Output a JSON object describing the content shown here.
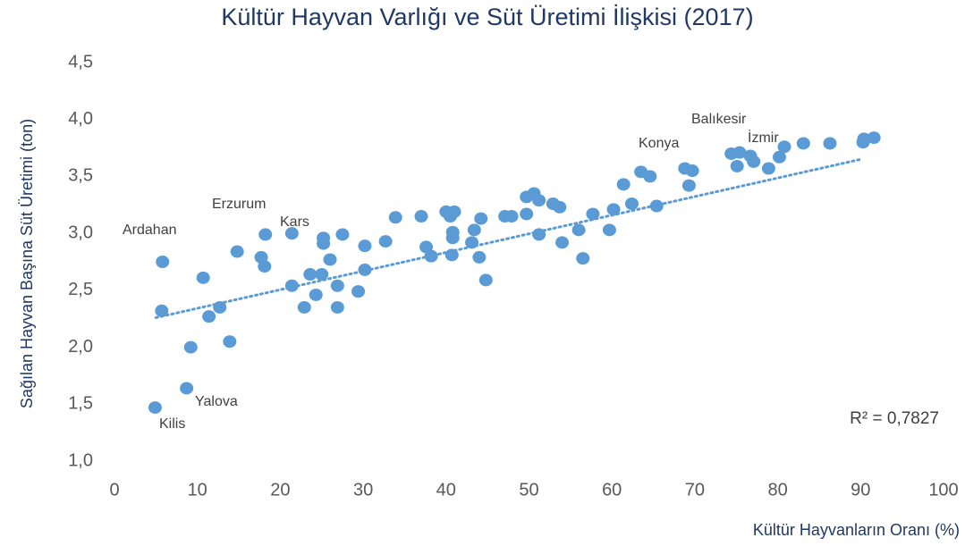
{
  "chart_data": {
    "type": "scatter",
    "title": "Kültür Hayvan Varlığı ve Süt Üretimi İlişkisi (2017)",
    "x_label": "Kültür Hayvanların Oranı (%)",
    "y_label": "Sağılan Hayvan Başına Süt Üretimi (ton)",
    "color": "#5b9bd5",
    "xlim": [
      0,
      100
    ],
    "ylim": [
      1.0,
      4.5
    ],
    "xticks": [
      0,
      10,
      20,
      30,
      40,
      50,
      60,
      70,
      80,
      90,
      100
    ],
    "yticks": [
      {
        "value": 1.0,
        "label": "1,0"
      },
      {
        "value": 1.5,
        "label": "1,5"
      },
      {
        "value": 2.0,
        "label": "2,0"
      },
      {
        "value": 2.5,
        "label": "2,5"
      },
      {
        "value": 3.0,
        "label": "3,0"
      },
      {
        "value": 3.5,
        "label": "3,5"
      },
      {
        "value": 4.0,
        "label": "4,0"
      },
      {
        "value": 4.5,
        "label": "4,5"
      }
    ],
    "x": [
      4.9,
      8.7,
      9.2,
      5.8,
      5.7,
      10.7,
      11.4,
      12.7,
      13.9,
      14.8,
      17.7,
      18.1,
      18.2,
      21.4,
      21.4,
      22.9,
      23.6,
      24.3,
      25.0,
      25.2,
      25.2,
      26.0,
      26.9,
      26.9,
      27.5,
      29.4,
      30.2,
      30.2,
      32.7,
      33.9,
      37.0,
      37.6,
      38.2,
      40.0,
      40.5,
      41.0,
      40.8,
      40.8,
      40.7,
      43.1,
      43.4,
      44.0,
      44.2,
      44.8,
      47.1,
      47.9,
      49.7,
      49.7,
      50.6,
      51.2,
      51.2,
      52.9,
      53.7,
      54.0,
      56.0,
      56.5,
      57.7,
      59.7,
      60.2,
      61.4,
      62.4,
      63.5,
      64.6,
      65.4,
      68.8,
      69.7,
      69.3,
      74.4,
      75.4,
      75.1,
      76.7,
      77.1,
      78.9,
      80.2,
      80.8,
      83.1,
      86.3,
      90.4,
      90.3,
      91.6
    ],
    "values": [
      1.47,
      1.64,
      2.0,
      2.75,
      2.32,
      2.61,
      2.27,
      2.35,
      2.05,
      2.84,
      2.79,
      2.71,
      2.99,
      3.0,
      2.54,
      2.35,
      2.64,
      2.46,
      2.64,
      2.96,
      2.91,
      2.77,
      2.54,
      2.35,
      2.99,
      2.49,
      2.68,
      2.89,
      2.93,
      3.14,
      3.15,
      2.88,
      2.8,
      3.19,
      3.15,
      3.19,
      3.01,
      2.96,
      2.81,
      2.92,
      3.03,
      2.79,
      3.13,
      2.59,
      3.15,
      3.15,
      3.17,
      3.32,
      3.35,
      3.29,
      2.99,
      3.26,
      3.23,
      2.92,
      3.03,
      2.78,
      3.17,
      3.03,
      3.21,
      3.43,
      3.26,
      3.54,
      3.5,
      3.24,
      3.57,
      3.55,
      3.42,
      3.7,
      3.71,
      3.59,
      3.68,
      3.63,
      3.57,
      3.67,
      3.76,
      3.79,
      3.79,
      3.83,
      3.8,
      3.84
    ],
    "trendline": {
      "x": [
        5,
        90
      ],
      "y": [
        2.26,
        3.65
      ]
    },
    "annotations": [
      "Ardahan",
      "Erzurum",
      "Kars",
      "Yalova",
      "Kilis",
      "Konya",
      "Balıkesir",
      "İzmir",
      "R² = 0,7827"
    ]
  }
}
